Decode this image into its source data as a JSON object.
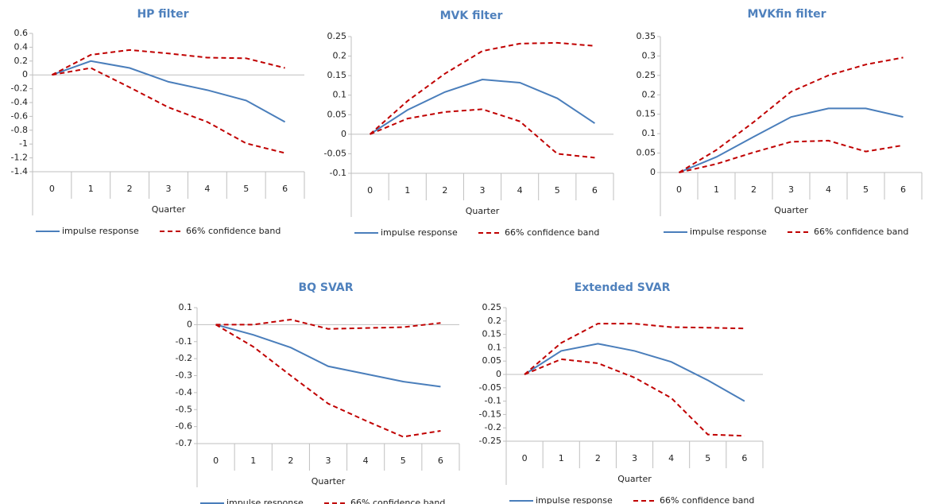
{
  "chart_data": [
    {
      "type": "line",
      "title": "HP filter",
      "xlabel": "Quarter",
      "categories": [
        "0",
        "1",
        "2",
        "3",
        "4",
        "5",
        "6"
      ],
      "ylim": [
        -1.4,
        0.6
      ],
      "yticks": [
        0.6,
        0.4,
        0.2,
        0,
        -0.2,
        -0.4,
        -0.6,
        -0.8,
        -1,
        -1.2,
        -1.4
      ],
      "series": [
        {
          "name": "impulse response",
          "color": "#4a7ebb",
          "values": [
            0,
            0.2,
            0.1,
            -0.1,
            -0.22,
            -0.37,
            -0.68
          ]
        },
        {
          "name": "66% confidence band",
          "color": "#c00000",
          "dashed": true,
          "upper": [
            0,
            0.29,
            0.36,
            0.31,
            0.25,
            0.24,
            0.1
          ],
          "lower": [
            0,
            0.1,
            -0.18,
            -0.47,
            -0.68,
            -0.99,
            -1.13
          ]
        }
      ]
    },
    {
      "type": "line",
      "title": "MVK filter",
      "xlabel": "Quarter",
      "categories": [
        "0",
        "1",
        "2",
        "3",
        "4",
        "5",
        "6"
      ],
      "ylim": [
        -0.1,
        0.25
      ],
      "yticks": [
        0.25,
        0.2,
        0.15,
        0.1,
        0.05,
        0,
        -0.05,
        -0.1
      ],
      "series": [
        {
          "name": "impulse response",
          "color": "#4a7ebb",
          "values": [
            0,
            0.062,
            0.108,
            0.14,
            0.132,
            0.092,
            0.028
          ]
        },
        {
          "name": "66% confidence band",
          "color": "#c00000",
          "dashed": true,
          "upper": [
            0,
            0.085,
            0.155,
            0.213,
            0.232,
            0.234,
            0.226
          ],
          "lower": [
            0,
            0.04,
            0.057,
            0.064,
            0.033,
            -0.05,
            -0.06
          ]
        }
      ]
    },
    {
      "type": "line",
      "title": "MVKfin filter",
      "xlabel": "Quarter",
      "categories": [
        "0",
        "1",
        "2",
        "3",
        "4",
        "5",
        "6"
      ],
      "ylim": [
        0,
        0.35
      ],
      "yticks": [
        0.35,
        0.3,
        0.25,
        0.2,
        0.15,
        0.1,
        0.05,
        0
      ],
      "series": [
        {
          "name": "impulse response",
          "color": "#4a7ebb",
          "values": [
            0,
            0.04,
            0.092,
            0.143,
            0.165,
            0.165,
            0.143
          ]
        },
        {
          "name": "66% confidence band",
          "color": "#c00000",
          "dashed": true,
          "upper": [
            0,
            0.058,
            0.13,
            0.208,
            0.25,
            0.278,
            0.296
          ],
          "lower": [
            0,
            0.022,
            0.052,
            0.079,
            0.082,
            0.054,
            0.07
          ]
        }
      ]
    },
    {
      "type": "line",
      "title": "BQ SVAR",
      "xlabel": "Quarter",
      "categories": [
        "0",
        "1",
        "2",
        "3",
        "4",
        "5",
        "6"
      ],
      "ylim": [
        -0.7,
        0.1
      ],
      "yticks": [
        0.1,
        0,
        -0.1,
        -0.2,
        -0.3,
        -0.4,
        -0.5,
        -0.6,
        -0.7
      ],
      "series": [
        {
          "name": "impulse response",
          "color": "#4a7ebb",
          "values": [
            0,
            -0.06,
            -0.135,
            -0.245,
            -0.29,
            -0.335,
            -0.365
          ]
        },
        {
          "name": "66% confidence band",
          "color": "#c00000",
          "dashed": true,
          "upper": [
            0,
            0,
            0.03,
            -0.025,
            -0.02,
            -0.015,
            0.01
          ],
          "lower": [
            0,
            -0.13,
            -0.3,
            -0.465,
            -0.565,
            -0.66,
            -0.625
          ]
        }
      ]
    },
    {
      "type": "line",
      "title": "Extended SVAR",
      "xlabel": "Quarter",
      "categories": [
        "0",
        "1",
        "2",
        "3",
        "4",
        "5",
        "6"
      ],
      "ylim": [
        -0.25,
        0.25
      ],
      "yticks": [
        0.25,
        0.2,
        0.15,
        0.1,
        0.05,
        0,
        -0.05,
        -0.1,
        -0.15,
        -0.2,
        -0.25
      ],
      "series": [
        {
          "name": "impulse response",
          "color": "#4a7ebb",
          "values": [
            0,
            0.088,
            0.115,
            0.088,
            0.047,
            -0.022,
            -0.1
          ]
        },
        {
          "name": "66% confidence band",
          "color": "#c00000",
          "dashed": true,
          "upper": [
            0,
            0.118,
            0.19,
            0.19,
            0.177,
            0.175,
            0.172
          ],
          "lower": [
            0,
            0.057,
            0.042,
            -0.012,
            -0.088,
            -0.225,
            -0.23
          ]
        }
      ]
    }
  ]
}
